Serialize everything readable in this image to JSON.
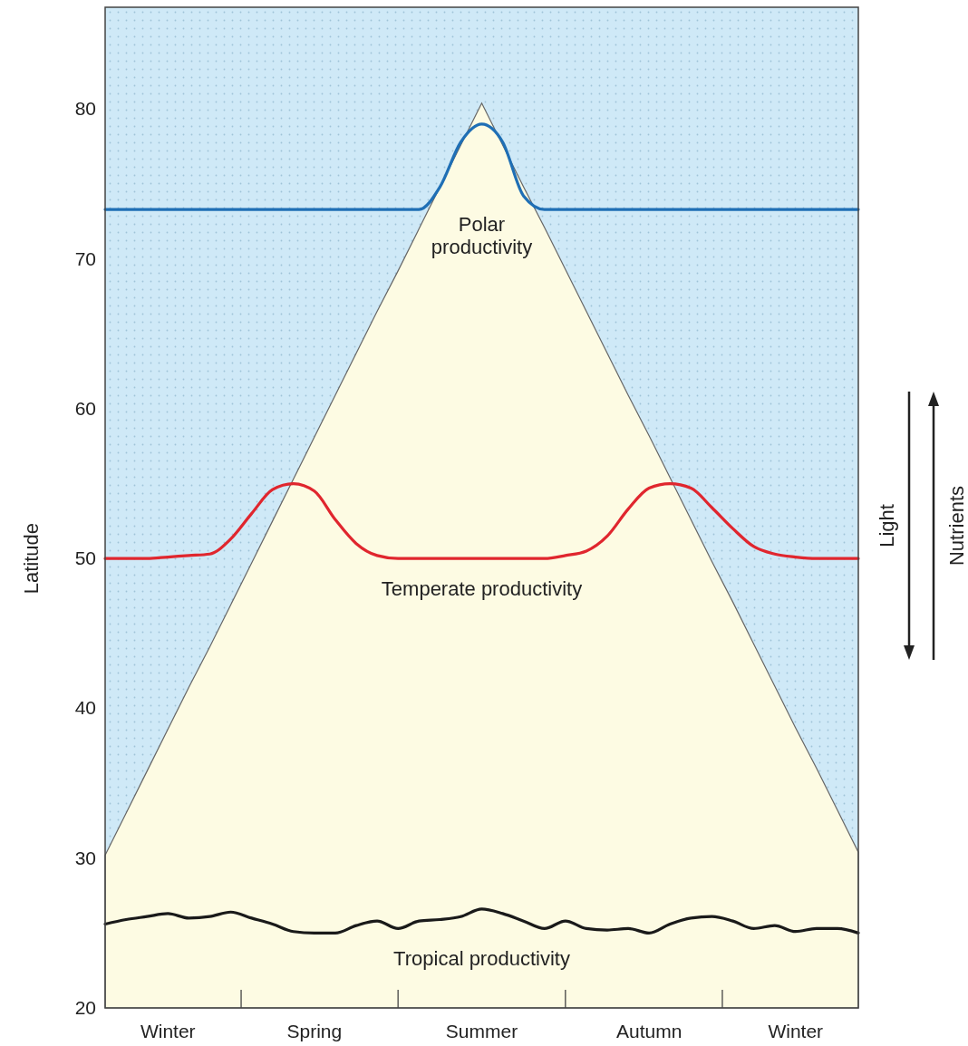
{
  "chart_data": {
    "type": "line",
    "ylabel": "Latitude",
    "categories": [
      null,
      null,
      null,
      "Winter",
      null,
      null,
      null,
      null,
      null,
      null,
      "Spring",
      null,
      null,
      null,
      null,
      null,
      null,
      null,
      "Summer",
      null,
      null,
      null,
      null,
      null,
      null,
      null,
      "Autumn",
      null,
      null,
      null,
      null,
      null,
      null,
      "Winter",
      null,
      null,
      null
    ],
    "ylim": [
      20,
      86.8
    ],
    "yticks": [
      20,
      30,
      40,
      50,
      60,
      70,
      80
    ],
    "grid": false,
    "legend": false,
    "marker": "none",
    "line_style": "solid",
    "series": [
      {
        "type": "area",
        "color": "#fdfbe3",
        "values": [
          30.2,
          33.0,
          35.8,
          38.6,
          41.4,
          44.1,
          46.9,
          49.7,
          52.5,
          55.3,
          58.1,
          60.9,
          63.7,
          66.5,
          69.2,
          72.0,
          74.8,
          77.6,
          80.4,
          77.6,
          74.8,
          72.1,
          69.3,
          66.5,
          63.7,
          60.9,
          58.2,
          55.4,
          52.6,
          49.8,
          47.1,
          44.3,
          41.5,
          38.7,
          36.0,
          33.2,
          30.4
        ]
      },
      {
        "name": "Polar productivity",
        "color": "#1f6fb5",
        "values": [
          73.3,
          73.3,
          73.3,
          73.3,
          73.3,
          73.3,
          73.3,
          73.3,
          73.3,
          73.3,
          73.3,
          73.3,
          73.3,
          73.3,
          73.3,
          73.3,
          74.8,
          77.8,
          79,
          77.8,
          74.2,
          73.3,
          73.3,
          73.3,
          73.3,
          73.3,
          73.3,
          73.3,
          73.3,
          73.3,
          73.3,
          73.3,
          73.3,
          73.3,
          73.3,
          73.3,
          73.3
        ]
      },
      {
        "name": "Temperate productivity",
        "color": "#e0262e",
        "values": [
          50,
          50,
          50,
          50.1,
          50.2,
          50.3,
          51.3,
          53,
          54.6,
          55,
          54.5,
          52.6,
          51,
          50.2,
          50,
          50,
          50,
          50,
          50,
          50,
          50,
          50,
          50.2,
          50.5,
          51.5,
          53.3,
          54.7,
          55,
          54.7,
          53.4,
          52,
          50.8,
          50.3,
          50.1,
          50,
          50,
          50
        ]
      },
      {
        "name": "Tropical productivity",
        "color": "#1a1a1a",
        "values": [
          25.6,
          25.9,
          26.1,
          26.3,
          26.0,
          26.1,
          26.4,
          26.0,
          25.6,
          25.1,
          25.0,
          25.0,
          25.5,
          25.8,
          25.3,
          25.8,
          25.9,
          26.1,
          26.6,
          26.3,
          25.8,
          25.3,
          25.8,
          25.3,
          25.2,
          25.3,
          25.0,
          25.6,
          26.0,
          26.1,
          25.8,
          25.3,
          25.5,
          25.1,
          25.3,
          25.3,
          25.0
        ]
      }
    ],
    "annotations": [
      "Light",
      "Nutrients"
    ]
  }
}
